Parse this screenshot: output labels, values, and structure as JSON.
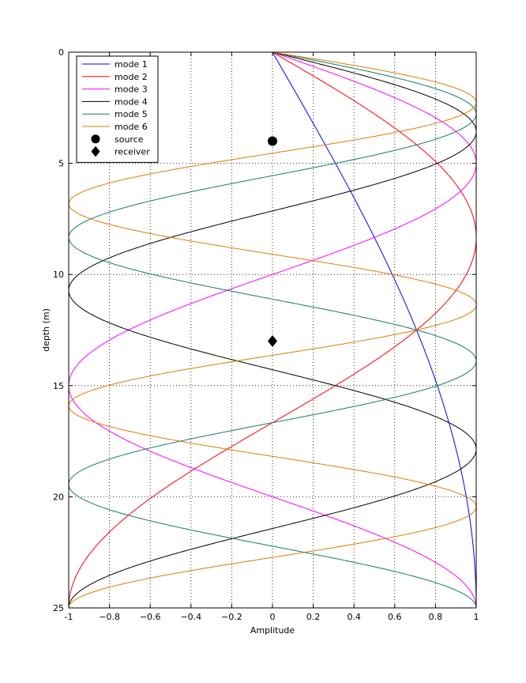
{
  "chart_data": {
    "type": "line",
    "title": "",
    "xlabel": "Amplitude",
    "ylabel": "depth (m)",
    "xlim": [
      -1,
      1
    ],
    "ylim": [
      0,
      25
    ],
    "y_reversed": true,
    "grid": true,
    "legend_position": "top-left",
    "x_ticks": [
      -1,
      -0.8,
      -0.6,
      -0.4,
      -0.2,
      0,
      0.2,
      0.4,
      0.6,
      0.8,
      1
    ],
    "x_tick_labels": [
      "-1",
      "−0.8",
      "−0.6",
      "−0.4",
      "−0.2",
      "0",
      "0.2",
      "0.4",
      "0.6",
      "0.8",
      "1"
    ],
    "y_ticks": [
      0,
      5,
      10,
      15,
      20,
      25
    ],
    "y_tick_labels": [
      "0",
      "5",
      "10",
      "15",
      "20",
      "25"
    ],
    "depth_total": 25,
    "series": [
      {
        "name": "mode 1",
        "mode": 1,
        "color": "#0000ff",
        "function": "sin((2n-1)*pi*z/(2*25))"
      },
      {
        "name": "mode 2",
        "mode": 2,
        "color": "#ff0000",
        "function": "sin((2n-1)*pi*z/(2*25))"
      },
      {
        "name": "mode 3",
        "mode": 3,
        "color": "#ff00ff",
        "function": "sin((2n-1)*pi*z/(2*25))"
      },
      {
        "name": "mode 4",
        "mode": 4,
        "color": "#000000",
        "function": "sin((2n-1)*pi*z/(2*25))"
      },
      {
        "name": "mode 5",
        "mode": 5,
        "color": "#127b6a",
        "function": "sin((2n-1)*pi*z/(2*25))"
      },
      {
        "name": "mode 6",
        "mode": 6,
        "color": "#e07b00",
        "function": "sin((2n-1)*pi*z/(2*25))"
      }
    ],
    "markers": [
      {
        "name": "source",
        "shape": "circle",
        "x": 0,
        "y": 4
      },
      {
        "name": "receiver",
        "shape": "diamond",
        "x": 0,
        "y": 13
      }
    ]
  }
}
